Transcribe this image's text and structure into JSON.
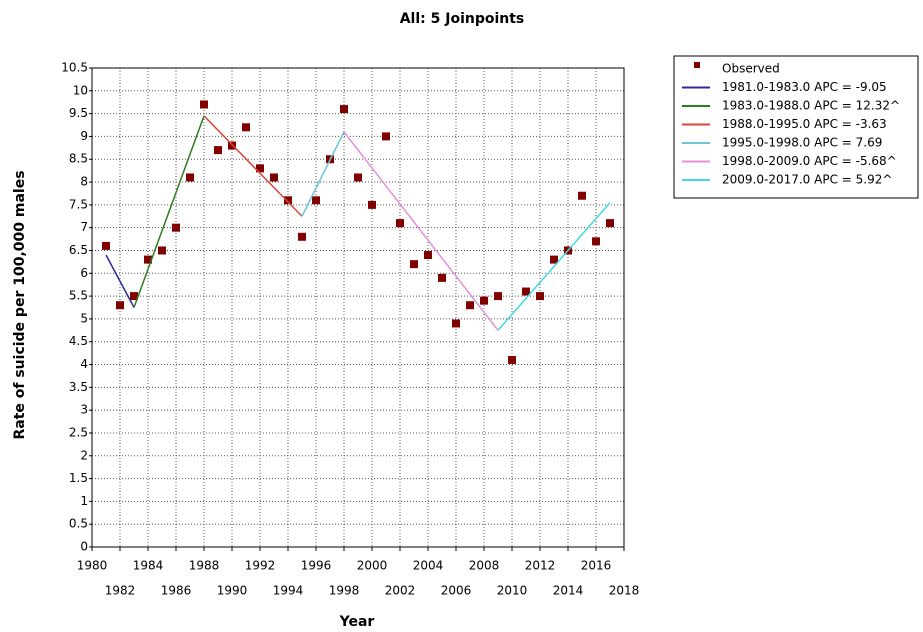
{
  "chart_data": {
    "type": "line",
    "title": "All: 5 Joinpoints",
    "x_label": "Year",
    "y_label": "Rate of suicide per 100,000 males",
    "xlim": [
      1980,
      2018
    ],
    "ylim": [
      0,
      10.5
    ],
    "xticks": [
      1980,
      1982,
      1984,
      1986,
      1988,
      1990,
      1992,
      1994,
      1996,
      1998,
      2000,
      2002,
      2004,
      2006,
      2008,
      2010,
      2012,
      2014,
      2016,
      2018
    ],
    "yticks": [
      0,
      0.5,
      1,
      1.5,
      2,
      2.5,
      3,
      3.5,
      4,
      4.5,
      5,
      5.5,
      6,
      6.5,
      7,
      7.5,
      8,
      8.5,
      9,
      9.5,
      10,
      10.5
    ],
    "grid": true,
    "legend": "right",
    "series": [
      {
        "name": "Observed",
        "color": "#800000",
        "mode": "markers",
        "x": [
          1981,
          1982,
          1983,
          1984,
          1985,
          1986,
          1987,
          1988,
          1989,
          1990,
          1991,
          1992,
          1993,
          1994,
          1995,
          1996,
          1997,
          1998,
          1999,
          2000,
          2001,
          2002,
          2003,
          2004,
          2005,
          2006,
          2007,
          2008,
          2009,
          2010,
          2011,
          2012,
          2013,
          2014,
          2015,
          2016,
          2017
        ],
        "values": [
          6.6,
          5.3,
          5.5,
          6.3,
          6.5,
          7.0,
          8.1,
          9.7,
          8.7,
          8.8,
          9.2,
          8.3,
          8.1,
          7.6,
          6.8,
          7.6,
          8.5,
          9.6,
          8.1,
          7.5,
          9.0,
          7.1,
          6.2,
          6.4,
          5.9,
          4.9,
          5.3,
          5.4,
          5.5,
          4.1,
          5.6,
          5.5,
          6.3,
          6.5,
          7.7,
          6.7,
          7.1
        ]
      },
      {
        "name": "1981.0-1983.0 APC  = -9.05",
        "color": "#2b2b9a",
        "mode": "lines",
        "x": [
          1981,
          1983
        ],
        "values": [
          6.4,
          5.25
        ]
      },
      {
        "name": "1983.0-1988.0 APC  = 12.32^",
        "color": "#2e7d1e",
        "mode": "lines",
        "x": [
          1983,
          1988
        ],
        "values": [
          5.25,
          9.45
        ]
      },
      {
        "name": "1988.0-1995.0 APC  = -3.63",
        "color": "#d9453a",
        "mode": "lines",
        "x": [
          1988,
          1995
        ],
        "values": [
          9.45,
          7.25
        ]
      },
      {
        "name": "1995.0-1998.0 APC  = 7.69",
        "color": "#6cc6d6",
        "mode": "lines",
        "x": [
          1995,
          1998
        ],
        "values": [
          7.25,
          9.1
        ]
      },
      {
        "name": "1998.0-2009.0 APC  = -5.68^",
        "color": "#e38fd8",
        "mode": "lines",
        "x": [
          1998,
          2009
        ],
        "values": [
          9.1,
          4.75
        ]
      },
      {
        "name": "2009.0-2017.0 APC  = 5.92^",
        "color": "#3fd9e0",
        "mode": "lines",
        "x": [
          2009,
          2017
        ],
        "values": [
          4.75,
          7.55
        ]
      }
    ]
  }
}
